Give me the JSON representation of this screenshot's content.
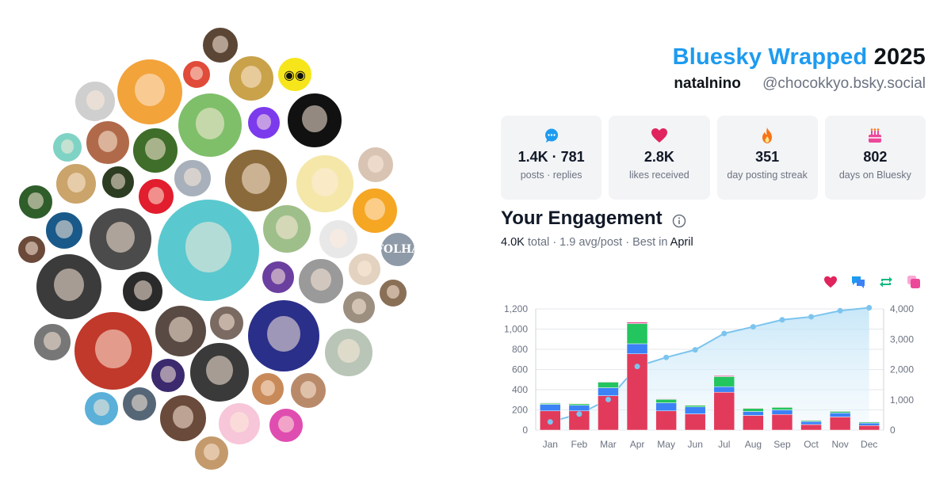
{
  "header": {
    "brand": "Bluesky Wrapped",
    "year": "2025",
    "display_name": "natalnino",
    "handle": "@chocokkyo.bsky.social"
  },
  "stats": [
    {
      "icon": "speech-bubble-icon",
      "value": "1.4K · 781",
      "label": "posts · replies",
      "color": "#1d9bf0"
    },
    {
      "icon": "heart-icon",
      "value": "2.8K",
      "label": "likes received",
      "color": "#e0245e"
    },
    {
      "icon": "flame-icon",
      "value": "351",
      "label": "day posting streak",
      "color": "#f97316"
    },
    {
      "icon": "cake-icon",
      "value": "802",
      "label": "days on Bluesky",
      "color": "#ec4899"
    }
  ],
  "engagement": {
    "title": "Your Engagement",
    "total_value": "4.0K",
    "total_word": "total",
    "avg": "· 1.9 avg/post ·",
    "best_prefix": "Best in",
    "best_month": "April"
  },
  "legend": [
    {
      "icon": "heart-icon",
      "color": "#e0245e"
    },
    {
      "icon": "reply-icon",
      "color": "#1d9bf0"
    },
    {
      "icon": "repost-icon",
      "color": "#10b981"
    },
    {
      "icon": "quote-icon",
      "color": "#ec4899"
    }
  ],
  "avatars": {
    "folha_label": "FOLHA",
    "eyes_label": "◉◉"
  },
  "chart_data": {
    "type": "bar",
    "categories": [
      "Jan",
      "Feb",
      "Mar",
      "Apr",
      "May",
      "Jun",
      "Jul",
      "Aug",
      "Sep",
      "Oct",
      "Nov",
      "Dec"
    ],
    "series": [
      {
        "values": [
          190,
          190,
          340,
          755,
          190,
          160,
          375,
          145,
          155,
          55,
          130,
          45
        ],
        "color": "#e23a5b"
      },
      {
        "values": [
          65,
          55,
          80,
          100,
          80,
          70,
          55,
          40,
          45,
          30,
          40,
          25
        ],
        "color": "#3b82f6"
      },
      {
        "values": [
          10,
          15,
          55,
          200,
          35,
          15,
          100,
          30,
          25,
          10,
          15,
          10
        ],
        "color": "#22c55e"
      },
      {
        "values": [
          5,
          5,
          5,
          15,
          5,
          5,
          10,
          5,
          5,
          5,
          5,
          5
        ],
        "color": "#ec4899"
      }
    ],
    "cumulative": {
      "values": [
        270,
        530,
        1010,
        2100,
        2400,
        2650,
        3190,
        3410,
        3640,
        3740,
        3940,
        4040
      ],
      "color": "#7cc4ee"
    },
    "ylim": [
      0,
      1200
    ],
    "y_ticks": [
      "0",
      "200",
      "400",
      "600",
      "800",
      "1,000",
      "1,200"
    ],
    "y2lim": [
      0,
      4000
    ],
    "y2_ticks": [
      "0",
      "1,000",
      "2,000",
      "3,000",
      "4,000"
    ],
    "grid": true
  }
}
